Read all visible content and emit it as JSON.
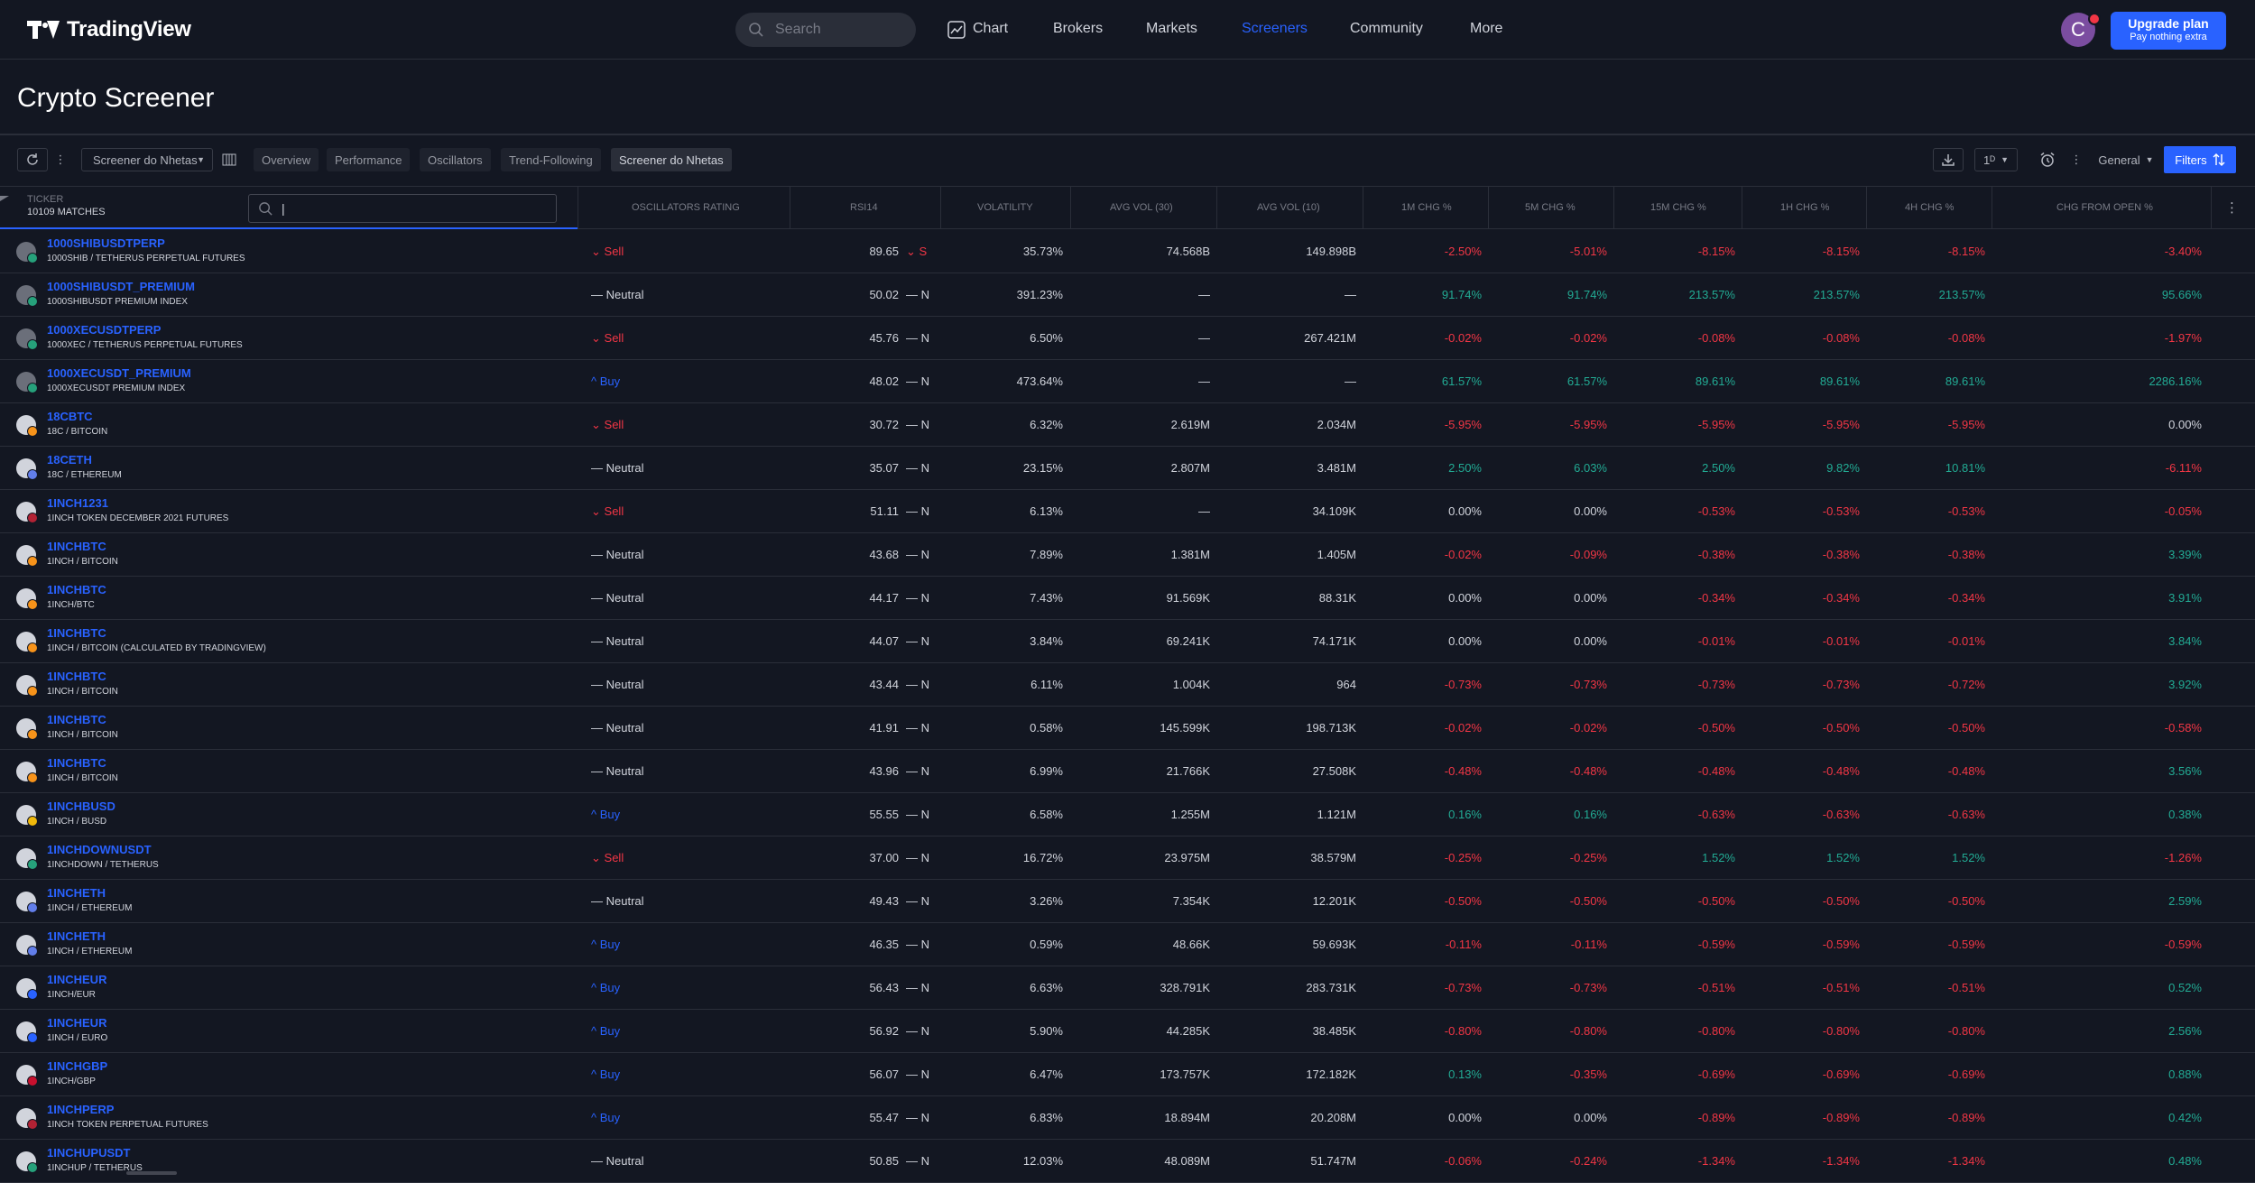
{
  "header": {
    "logo_text": "TradingView",
    "search_placeholder": "Search",
    "nav": [
      {
        "label": "Chart"
      },
      {
        "label": "Brokers"
      },
      {
        "label": "Markets"
      },
      {
        "label": "Screeners"
      },
      {
        "label": "Community"
      },
      {
        "label": "More"
      }
    ],
    "avatar_initial": "C",
    "upgrade_line1": "Upgrade plan",
    "upgrade_line2": "Pay nothing extra"
  },
  "page_title": "Crypto Screener",
  "toolbar": {
    "screener_select": "Screener do Nhetas",
    "tabs": [
      "Overview",
      "Performance",
      "Oscillators",
      "Trend-Following",
      "Screener do Nhetas"
    ],
    "active_tab": "Screener do Nhetas",
    "interval": "1ᴰ",
    "column_set": "General",
    "filters_label": "Filters"
  },
  "table": {
    "ticker_label": "TICKER",
    "matches": "10109 MATCHES",
    "ticker_search_value": "|",
    "columns": [
      "OSCILLATORS RATING",
      "RSI14",
      "VOLATILITY",
      "AVG VOL (30)",
      "AVG VOL (10)",
      "1M CHG %",
      "5M CHG %",
      "15M CHG %",
      "1H CHG %",
      "4H CHG %",
      "CHG FROM OPEN %"
    ],
    "rows": [
      {
        "symbol": "1000SHIBUSDTPERP",
        "desc": "1000SHIB / TETHERUS PERPETUAL FUTURES",
        "rating": "Sell",
        "rsi": "89.65",
        "rsi_flag": "S",
        "volatility": "35.73%",
        "avg30": "74.568B",
        "avg10": "149.898B",
        "c1m": "-2.50%",
        "c5m": "-5.01%",
        "c15m": "-8.15%",
        "c1h": "-8.15%",
        "c4h": "-8.15%",
        "cfo": "-3.40%",
        "coin_color": "#6b6f7a",
        "badge_color": "#26a17b"
      },
      {
        "symbol": "1000SHIBUSDT_PREMIUM",
        "desc": "1000SHIBUSDT PREMIUM INDEX",
        "rating": "Neutral",
        "rsi": "50.02",
        "rsi_flag": "N",
        "volatility": "391.23%",
        "avg30": "—",
        "avg10": "—",
        "c1m": "91.74%",
        "c5m": "91.74%",
        "c15m": "213.57%",
        "c1h": "213.57%",
        "c4h": "213.57%",
        "cfo": "95.66%",
        "coin_color": "#6b6f7a",
        "badge_color": "#26a17b"
      },
      {
        "symbol": "1000XECUSDTPERP",
        "desc": "1000XEC / TETHERUS PERPETUAL FUTURES",
        "rating": "Sell",
        "rsi": "45.76",
        "rsi_flag": "N",
        "volatility": "6.50%",
        "avg30": "—",
        "avg10": "267.421M",
        "c1m": "-0.02%",
        "c5m": "-0.02%",
        "c15m": "-0.08%",
        "c1h": "-0.08%",
        "c4h": "-0.08%",
        "cfo": "-1.97%",
        "coin_color": "#6b6f7a",
        "badge_color": "#26a17b"
      },
      {
        "symbol": "1000XECUSDT_PREMIUM",
        "desc": "1000XECUSDT PREMIUM INDEX",
        "rating": "Buy",
        "rsi": "48.02",
        "rsi_flag": "N",
        "volatility": "473.64%",
        "avg30": "—",
        "avg10": "—",
        "c1m": "61.57%",
        "c5m": "61.57%",
        "c15m": "89.61%",
        "c1h": "89.61%",
        "c4h": "89.61%",
        "cfo": "2286.16%",
        "coin_color": "#6b6f7a",
        "badge_color": "#26a17b"
      },
      {
        "symbol": "18CBTC",
        "desc": "18C / BITCOIN",
        "rating": "Sell",
        "rsi": "30.72",
        "rsi_flag": "N",
        "volatility": "6.32%",
        "avg30": "2.619M",
        "avg10": "2.034M",
        "c1m": "-5.95%",
        "c5m": "-5.95%",
        "c15m": "-5.95%",
        "c1h": "-5.95%",
        "c4h": "-5.95%",
        "cfo": "0.00%",
        "coin_color": "#d1d4dc",
        "badge_color": "#f7931a"
      },
      {
        "symbol": "18CETH",
        "desc": "18C / ETHEREUM",
        "rating": "Neutral",
        "rsi": "35.07",
        "rsi_flag": "N",
        "volatility": "23.15%",
        "avg30": "2.807M",
        "avg10": "3.481M",
        "c1m": "2.50%",
        "c5m": "6.03%",
        "c15m": "2.50%",
        "c1h": "9.82%",
        "c4h": "10.81%",
        "cfo": "-6.11%",
        "coin_color": "#d1d4dc",
        "badge_color": "#627eea"
      },
      {
        "symbol": "1INCH1231",
        "desc": "1INCH TOKEN DECEMBER 2021 FUTURES",
        "rating": "Sell",
        "rsi": "51.11",
        "rsi_flag": "N",
        "volatility": "6.13%",
        "avg30": "—",
        "avg10": "34.109K",
        "c1m": "0.00%",
        "c5m": "0.00%",
        "c15m": "-0.53%",
        "c1h": "-0.53%",
        "c4h": "-0.53%",
        "cfo": "-0.05%",
        "coin_color": "#d1d4dc",
        "badge_color": "#b22234"
      },
      {
        "symbol": "1INCHBTC",
        "desc": "1INCH / BITCOIN",
        "rating": "Neutral",
        "rsi": "43.68",
        "rsi_flag": "N",
        "volatility": "7.89%",
        "avg30": "1.381M",
        "avg10": "1.405M",
        "c1m": "-0.02%",
        "c5m": "-0.09%",
        "c15m": "-0.38%",
        "c1h": "-0.38%",
        "c4h": "-0.38%",
        "cfo": "3.39%",
        "coin_color": "#d1d4dc",
        "badge_color": "#f7931a"
      },
      {
        "symbol": "1INCHBTC",
        "desc": "1INCH/BTC",
        "rating": "Neutral",
        "rsi": "44.17",
        "rsi_flag": "N",
        "volatility": "7.43%",
        "avg30": "91.569K",
        "avg10": "88.31K",
        "c1m": "0.00%",
        "c5m": "0.00%",
        "c15m": "-0.34%",
        "c1h": "-0.34%",
        "c4h": "-0.34%",
        "cfo": "3.91%",
        "coin_color": "#d1d4dc",
        "badge_color": "#f7931a"
      },
      {
        "symbol": "1INCHBTC",
        "desc": "1INCH / BITCOIN (CALCULATED BY TRADINGVIEW)",
        "rating": "Neutral",
        "rsi": "44.07",
        "rsi_flag": "N",
        "volatility": "3.84%",
        "avg30": "69.241K",
        "avg10": "74.171K",
        "c1m": "0.00%",
        "c5m": "0.00%",
        "c15m": "-0.01%",
        "c1h": "-0.01%",
        "c4h": "-0.01%",
        "cfo": "3.84%",
        "coin_color": "#d1d4dc",
        "badge_color": "#f7931a"
      },
      {
        "symbol": "1INCHBTC",
        "desc": "1INCH / BITCOIN",
        "rating": "Neutral",
        "rsi": "43.44",
        "rsi_flag": "N",
        "volatility": "6.11%",
        "avg30": "1.004K",
        "avg10": "964",
        "c1m": "-0.73%",
        "c5m": "-0.73%",
        "c15m": "-0.73%",
        "c1h": "-0.73%",
        "c4h": "-0.72%",
        "cfo": "3.92%",
        "coin_color": "#d1d4dc",
        "badge_color": "#f7931a"
      },
      {
        "symbol": "1INCHBTC",
        "desc": "1INCH / BITCOIN",
        "rating": "Neutral",
        "rsi": "41.91",
        "rsi_flag": "N",
        "volatility": "0.58%",
        "avg30": "145.599K",
        "avg10": "198.713K",
        "c1m": "-0.02%",
        "c5m": "-0.02%",
        "c15m": "-0.50%",
        "c1h": "-0.50%",
        "c4h": "-0.50%",
        "cfo": "-0.58%",
        "coin_color": "#d1d4dc",
        "badge_color": "#f7931a"
      },
      {
        "symbol": "1INCHBTC",
        "desc": "1INCH / BITCOIN",
        "rating": "Neutral",
        "rsi": "43.96",
        "rsi_flag": "N",
        "volatility": "6.99%",
        "avg30": "21.766K",
        "avg10": "27.508K",
        "c1m": "-0.48%",
        "c5m": "-0.48%",
        "c15m": "-0.48%",
        "c1h": "-0.48%",
        "c4h": "-0.48%",
        "cfo": "3.56%",
        "coin_color": "#d1d4dc",
        "badge_color": "#f7931a"
      },
      {
        "symbol": "1INCHBUSD",
        "desc": "1INCH / BUSD",
        "rating": "Buy",
        "rsi": "55.55",
        "rsi_flag": "N",
        "volatility": "6.58%",
        "avg30": "1.255M",
        "avg10": "1.121M",
        "c1m": "0.16%",
        "c5m": "0.16%",
        "c15m": "-0.63%",
        "c1h": "-0.63%",
        "c4h": "-0.63%",
        "cfo": "0.38%",
        "coin_color": "#d1d4dc",
        "badge_color": "#f0b90b"
      },
      {
        "symbol": "1INCHDOWNUSDT",
        "desc": "1INCHDOWN / TETHERUS",
        "rating": "Sell",
        "rsi": "37.00",
        "rsi_flag": "N",
        "volatility": "16.72%",
        "avg30": "23.975M",
        "avg10": "38.579M",
        "c1m": "-0.25%",
        "c5m": "-0.25%",
        "c15m": "1.52%",
        "c1h": "1.52%",
        "c4h": "1.52%",
        "cfo": "-1.26%",
        "coin_color": "#d1d4dc",
        "badge_color": "#26a17b"
      },
      {
        "symbol": "1INCHETH",
        "desc": "1INCH / ETHEREUM",
        "rating": "Neutral",
        "rsi": "49.43",
        "rsi_flag": "N",
        "volatility": "3.26%",
        "avg30": "7.354K",
        "avg10": "12.201K",
        "c1m": "-0.50%",
        "c5m": "-0.50%",
        "c15m": "-0.50%",
        "c1h": "-0.50%",
        "c4h": "-0.50%",
        "cfo": "2.59%",
        "coin_color": "#d1d4dc",
        "badge_color": "#627eea"
      },
      {
        "symbol": "1INCHETH",
        "desc": "1INCH / ETHEREUM",
        "rating": "Buy",
        "rsi": "46.35",
        "rsi_flag": "N",
        "volatility": "0.59%",
        "avg30": "48.66K",
        "avg10": "59.693K",
        "c1m": "-0.11%",
        "c5m": "-0.11%",
        "c15m": "-0.59%",
        "c1h": "-0.59%",
        "c4h": "-0.59%",
        "cfo": "-0.59%",
        "coin_color": "#d1d4dc",
        "badge_color": "#627eea"
      },
      {
        "symbol": "1INCHEUR",
        "desc": "1INCH/EUR",
        "rating": "Buy",
        "rsi": "56.43",
        "rsi_flag": "N",
        "volatility": "6.63%",
        "avg30": "328.791K",
        "avg10": "283.731K",
        "c1m": "-0.73%",
        "c5m": "-0.73%",
        "c15m": "-0.51%",
        "c1h": "-0.51%",
        "c4h": "-0.51%",
        "cfo": "0.52%",
        "coin_color": "#d1d4dc",
        "badge_color": "#2962ff"
      },
      {
        "symbol": "1INCHEUR",
        "desc": "1INCH / EURO",
        "rating": "Buy",
        "rsi": "56.92",
        "rsi_flag": "N",
        "volatility": "5.90%",
        "avg30": "44.285K",
        "avg10": "38.485K",
        "c1m": "-0.80%",
        "c5m": "-0.80%",
        "c15m": "-0.80%",
        "c1h": "-0.80%",
        "c4h": "-0.80%",
        "cfo": "2.56%",
        "coin_color": "#d1d4dc",
        "badge_color": "#2962ff"
      },
      {
        "symbol": "1INCHGBP",
        "desc": "1INCH/GBP",
        "rating": "Buy",
        "rsi": "56.07",
        "rsi_flag": "N",
        "volatility": "6.47%",
        "avg30": "173.757K",
        "avg10": "172.182K",
        "c1m": "0.13%",
        "c5m": "-0.35%",
        "c15m": "-0.69%",
        "c1h": "-0.69%",
        "c4h": "-0.69%",
        "cfo": "0.88%",
        "coin_color": "#d1d4dc",
        "badge_color": "#c8102e"
      },
      {
        "symbol": "1INCHPERP",
        "desc": "1INCH TOKEN PERPETUAL FUTURES",
        "rating": "Buy",
        "rsi": "55.47",
        "rsi_flag": "N",
        "volatility": "6.83%",
        "avg30": "18.894M",
        "avg10": "20.208M",
        "c1m": "0.00%",
        "c5m": "0.00%",
        "c15m": "-0.89%",
        "c1h": "-0.89%",
        "c4h": "-0.89%",
        "cfo": "0.42%",
        "coin_color": "#d1d4dc",
        "badge_color": "#b22234"
      },
      {
        "symbol": "1INCHUPUSDT",
        "desc": "1INCHUP / TETHERUS",
        "rating": "Neutral",
        "rsi": "50.85",
        "rsi_flag": "N",
        "volatility": "12.03%",
        "avg30": "48.089M",
        "avg10": "51.747M",
        "c1m": "-0.06%",
        "c5m": "-0.24%",
        "c15m": "-1.34%",
        "c1h": "-1.34%",
        "c4h": "-1.34%",
        "cfo": "0.48%",
        "coin_color": "#d1d4dc",
        "badge_color": "#26a17b"
      }
    ]
  },
  "colors": {
    "accent": "#2962ff",
    "positive": "#22ab94",
    "negative": "#f23645",
    "background": "#131722"
  }
}
